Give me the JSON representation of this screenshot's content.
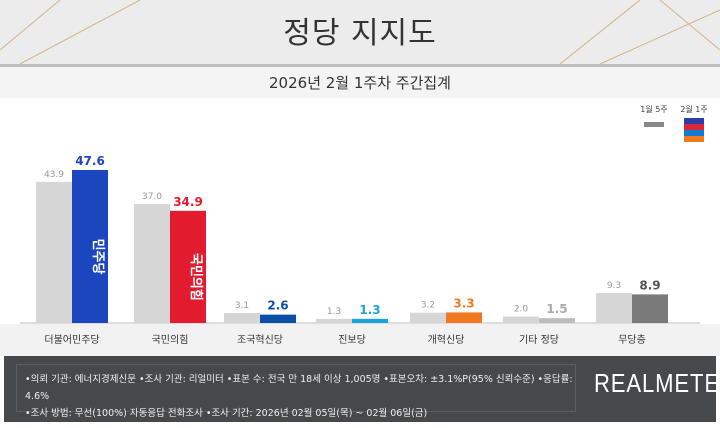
{
  "header": {
    "title": "정당 지지도",
    "subtitle": "2026년 2월 1주차 주간집계"
  },
  "chart_data": {
    "type": "bar",
    "categories": [
      "더불어민주당",
      "국민의힘",
      "조국혁신당",
      "진보당",
      "개혁신당",
      "기타 정당",
      "무당층"
    ],
    "series": [
      {
        "name": "1월 5주",
        "values": [
          43.9,
          37.0,
          3.1,
          1.3,
          3.2,
          2.0,
          9.3
        ],
        "color": "#d6d6d6"
      },
      {
        "name": "2월 1주",
        "values": [
          47.6,
          34.9,
          2.6,
          1.3,
          3.3,
          1.5,
          8.9
        ],
        "colors": [
          "#1c45c0",
          "#e31b2e",
          "#0c4fa6",
          "#1aa6dc",
          "#f07a22",
          "#bdbdbd",
          "#7a7a7a"
        ]
      }
    ],
    "label_colors": [
      "#1c45c0",
      "#e31b2e",
      "#0c4fa6",
      "#1aa6dc",
      "#f07a22",
      "#aaaaaa",
      "#555555"
    ],
    "ylim": [
      0,
      50
    ],
    "grid": false,
    "legend": "top-right",
    "bar_logos": {
      "0": "민주당",
      "1": "국민의힘"
    }
  },
  "legend": {
    "prev": "1월 5주",
    "curr": "2월 1주",
    "curr_stripes": [
      "#2a3fa8",
      "#d9283a",
      "#1479d1",
      "#f07a22"
    ]
  },
  "footer": {
    "line1": "•의뢰 기관: 에너지경제신문  •조사 기관: 리얼미터 •표본 수: 전국 만 18세 이상 1,005명 •표본오차: ±3.1%P(95% 신뢰수준) •응답률: 4.6%",
    "line2": "•조사 방법: 무선(100%) 자동응답 전화조사 •조사 기간: 2026년 02월 05일(목) ~ 02월 06일(금)",
    "brand": "REALMETER"
  }
}
